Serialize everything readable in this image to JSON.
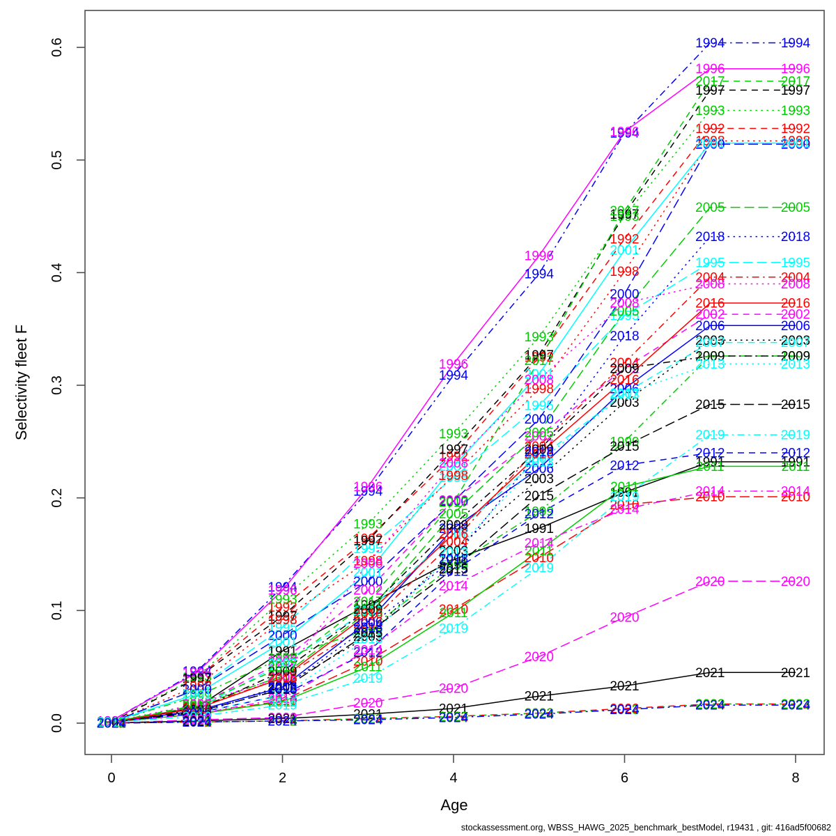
{
  "footer": "stockassessment.org, WBSS_HAWG_2025_benchmark_bestModel, r19431 , git: 416ad5f00682",
  "chart_data": {
    "type": "line",
    "title": "",
    "xlabel": "Age",
    "ylabel": "Selectivity fleet F",
    "x": [
      0,
      1,
      2,
      3,
      4,
      5,
      6,
      7,
      8
    ],
    "xlim": [
      0,
      8
    ],
    "ylim": [
      0,
      0.6
    ],
    "xticks": [
      0,
      2,
      4,
      6,
      8
    ],
    "xtick_labels": [
      "0",
      "2",
      "4",
      "6",
      "8"
    ],
    "yticks": [
      0.0,
      0.1,
      0.2,
      0.3,
      0.4,
      0.5,
      0.6
    ],
    "ytick_labels": [
      "0.0",
      "0.1",
      "0.2",
      "0.3",
      "0.4",
      "0.5",
      "0.6"
    ],
    "grid": false,
    "legend": "labels at every data point and at line ends, colored per year",
    "point_label_mode": "year",
    "series": [
      {
        "name": "1991",
        "color": "#000000",
        "dash": "solid",
        "values": [
          0.001,
          0.014,
          0.064,
          0.105,
          0.145,
          0.173,
          0.205,
          0.232,
          0.232
        ]
      },
      {
        "name": "1992",
        "color": "#FF0000",
        "dash": "dashed",
        "values": [
          0.001,
          0.04,
          0.103,
          0.164,
          0.237,
          0.325,
          0.43,
          0.528,
          0.528
        ]
      },
      {
        "name": "1993",
        "color": "#00CD00",
        "dash": "dotted",
        "values": [
          0.002,
          0.041,
          0.11,
          0.177,
          0.257,
          0.343,
          0.45,
          0.544,
          0.544
        ]
      },
      {
        "name": "1994",
        "color": "#0000FF",
        "dash": "dotdash",
        "values": [
          0.002,
          0.046,
          0.121,
          0.206,
          0.309,
          0.399,
          0.524,
          0.604,
          0.604
        ]
      },
      {
        "name": "1995",
        "color": "#00FFFF",
        "dash": "longdash",
        "values": [
          0.001,
          0.03,
          0.085,
          0.155,
          0.218,
          0.282,
          0.362,
          0.409,
          0.409
        ]
      },
      {
        "name": "1996",
        "color": "#FF00FF",
        "dash": "solid",
        "values": [
          0.002,
          0.045,
          0.118,
          0.21,
          0.319,
          0.415,
          0.525,
          0.581,
          0.581
        ]
      },
      {
        "name": "1997",
        "color": "#000000",
        "dash": "dashed",
        "values": [
          0.001,
          0.04,
          0.095,
          0.162,
          0.243,
          0.327,
          0.452,
          0.562,
          0.562
        ]
      },
      {
        "name": "1998",
        "color": "#FF0000",
        "dash": "dotted",
        "values": [
          0.001,
          0.033,
          0.092,
          0.144,
          0.22,
          0.297,
          0.401,
          0.517,
          0.517
        ]
      },
      {
        "name": "1999",
        "color": "#00CD00",
        "dash": "dotdash",
        "values": [
          0.001,
          0.024,
          0.058,
          0.083,
          0.14,
          0.188,
          0.25,
          0.326,
          0.326
        ]
      },
      {
        "name": "2000",
        "color": "#0000FF",
        "dash": "longdash",
        "values": [
          0.001,
          0.03,
          0.078,
          0.126,
          0.197,
          0.27,
          0.381,
          0.514,
          0.514
        ]
      },
      {
        "name": "2001",
        "color": "#00FFFF",
        "dash": "solid",
        "values": [
          0.001,
          0.026,
          0.072,
          0.134,
          0.228,
          0.31,
          0.42,
          0.515,
          0.515
        ]
      },
      {
        "name": "2002",
        "color": "#FF00FF",
        "dash": "dashed",
        "values": [
          0.001,
          0.015,
          0.055,
          0.118,
          0.198,
          0.255,
          0.315,
          0.363,
          0.363
        ]
      },
      {
        "name": "2003",
        "color": "#000000",
        "dash": "dotted",
        "values": [
          0.001,
          0.01,
          0.033,
          0.077,
          0.153,
          0.217,
          0.285,
          0.34,
          0.34
        ]
      },
      {
        "name": "2004",
        "color": "#FF0000",
        "dash": "dotdash",
        "values": [
          0.001,
          0.014,
          0.04,
          0.088,
          0.161,
          0.246,
          0.32,
          0.396,
          0.396
        ]
      },
      {
        "name": "2005",
        "color": "#00CD00",
        "dash": "longdash",
        "values": [
          0.001,
          0.015,
          0.042,
          0.099,
          0.186,
          0.258,
          0.366,
          0.458,
          0.458
        ]
      },
      {
        "name": "2006",
        "color": "#0000FF",
        "dash": "solid",
        "values": [
          0.001,
          0.011,
          0.032,
          0.09,
          0.173,
          0.226,
          0.297,
          0.353,
          0.353
        ]
      },
      {
        "name": "2007",
        "color": "#00FFFF",
        "dash": "dashed",
        "values": [
          0.001,
          0.013,
          0.053,
          0.1,
          0.168,
          0.235,
          0.293,
          0.338,
          0.338
        ]
      },
      {
        "name": "2008",
        "color": "#FF00FF",
        "dash": "dotted",
        "values": [
          0.001,
          0.017,
          0.041,
          0.142,
          0.231,
          0.305,
          0.373,
          0.39,
          0.39
        ]
      },
      {
        "name": "2009",
        "color": "#000000",
        "dash": "dotdash",
        "values": [
          0.001,
          0.012,
          0.046,
          0.101,
          0.176,
          0.243,
          0.315,
          0.326,
          0.326
        ]
      },
      {
        "name": "2010",
        "color": "#FF0000",
        "dash": "longdash",
        "values": [
          0.001,
          0.008,
          0.02,
          0.055,
          0.101,
          0.147,
          0.194,
          0.201,
          0.201
        ]
      },
      {
        "name": "2011",
        "color": "#00CD00",
        "dash": "solid",
        "values": [
          0.001,
          0.008,
          0.019,
          0.05,
          0.098,
          0.153,
          0.21,
          0.228,
          0.228
        ]
      },
      {
        "name": "2012",
        "color": "#0000FF",
        "dash": "dashed",
        "values": [
          0.001,
          0.009,
          0.025,
          0.063,
          0.135,
          0.186,
          0.229,
          0.24,
          0.24
        ]
      },
      {
        "name": "2013",
        "color": "#00FFFF",
        "dash": "dotted",
        "values": [
          0.001,
          0.009,
          0.025,
          0.075,
          0.152,
          0.232,
          0.292,
          0.319,
          0.319
        ]
      },
      {
        "name": "2014",
        "color": "#FF00FF",
        "dash": "dotdash",
        "values": [
          0.001,
          0.008,
          0.022,
          0.065,
          0.122,
          0.16,
          0.19,
          0.206,
          0.206
        ]
      },
      {
        "name": "2015",
        "color": "#000000",
        "dash": "longdash",
        "values": [
          0.001,
          0.01,
          0.03,
          0.08,
          0.137,
          0.202,
          0.246,
          0.283,
          0.283
        ]
      },
      {
        "name": "2016",
        "color": "#FF0000",
        "dash": "solid",
        "values": [
          0.001,
          0.013,
          0.04,
          0.097,
          0.168,
          0.239,
          0.305,
          0.373,
          0.373
        ]
      },
      {
        "name": "2017",
        "color": "#00CD00",
        "dash": "dashed",
        "values": [
          0.001,
          0.016,
          0.05,
          0.108,
          0.196,
          0.322,
          0.455,
          0.57,
          0.57
        ]
      },
      {
        "name": "2018",
        "color": "#0000FF",
        "dash": "dotted",
        "values": [
          0.001,
          0.009,
          0.031,
          0.085,
          0.146,
          0.241,
          0.344,
          0.432,
          0.432
        ]
      },
      {
        "name": "2019",
        "color": "#00FFFF",
        "dash": "dotdash",
        "values": [
          0.001,
          0.006,
          0.016,
          0.04,
          0.084,
          0.138,
          0.201,
          0.256,
          0.256
        ]
      },
      {
        "name": "2020",
        "color": "#FF00FF",
        "dash": "longdash",
        "values": [
          0.0,
          0.003,
          0.005,
          0.018,
          0.031,
          0.059,
          0.094,
          0.126,
          0.126
        ]
      },
      {
        "name": "2021",
        "color": "#000000",
        "dash": "solid",
        "values": [
          0.0,
          0.002,
          0.004,
          0.008,
          0.013,
          0.024,
          0.033,
          0.045,
          0.045
        ]
      },
      {
        "name": "2022",
        "color": "#FF0000",
        "dash": "dashed",
        "values": [
          0.0,
          0.001,
          0.002,
          0.004,
          0.006,
          0.009,
          0.013,
          0.017,
          0.017
        ]
      },
      {
        "name": "2023",
        "color": "#00CD00",
        "dash": "dotted",
        "values": [
          0.0,
          0.001,
          0.002,
          0.004,
          0.006,
          0.009,
          0.012,
          0.017,
          0.017
        ]
      },
      {
        "name": "2024",
        "color": "#0000FF",
        "dash": "dotdash",
        "values": [
          0.0,
          0.001,
          0.002,
          0.003,
          0.005,
          0.008,
          0.012,
          0.016,
          0.016
        ]
      }
    ]
  }
}
